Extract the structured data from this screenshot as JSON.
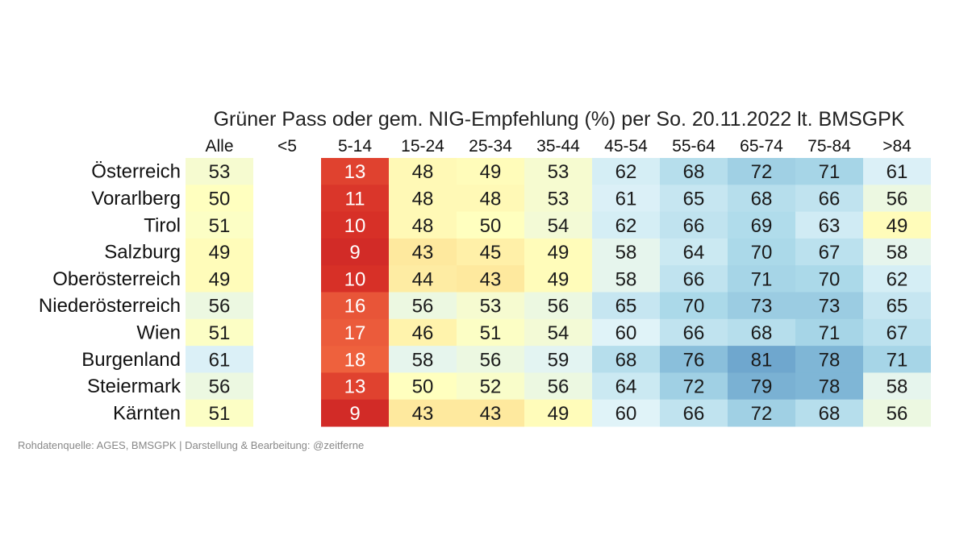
{
  "chart_data": {
    "type": "heatmap",
    "title": "Grüner Pass oder gem. NIG-Empfehlung (%) per So. 20.11.2022 lt. BMSGPK",
    "columns": [
      "Alle",
      "<5",
      "5-14",
      "15-24",
      "25-34",
      "35-44",
      "45-54",
      "55-64",
      "65-74",
      "75-84",
      ">84"
    ],
    "rows": [
      "Österreich",
      "Vorarlberg",
      "Tirol",
      "Salzburg",
      "Oberösterreich",
      "Niederösterreich",
      "Wien",
      "Burgenland",
      "Steiermark",
      "Kärnten"
    ],
    "values": [
      [
        53,
        null,
        13,
        48,
        49,
        53,
        62,
        68,
        72,
        71,
        61
      ],
      [
        50,
        null,
        11,
        48,
        48,
        53,
        61,
        65,
        68,
        66,
        56
      ],
      [
        51,
        null,
        10,
        48,
        50,
        54,
        62,
        66,
        69,
        63,
        49
      ],
      [
        49,
        null,
        9,
        43,
        45,
        49,
        58,
        64,
        70,
        67,
        58
      ],
      [
        49,
        null,
        10,
        44,
        43,
        49,
        58,
        66,
        71,
        70,
        62
      ],
      [
        56,
        null,
        16,
        56,
        53,
        56,
        65,
        70,
        73,
        73,
        65
      ],
      [
        51,
        null,
        17,
        46,
        51,
        54,
        60,
        66,
        68,
        71,
        67
      ],
      [
        61,
        null,
        18,
        58,
        56,
        59,
        68,
        76,
        81,
        78,
        71
      ],
      [
        56,
        null,
        13,
        50,
        52,
        56,
        64,
        72,
        79,
        78,
        58
      ],
      [
        51,
        null,
        9,
        43,
        43,
        49,
        60,
        66,
        72,
        68,
        56
      ]
    ],
    "colorscale": "RdYlBu",
    "value_range": [
      0,
      100
    ],
    "source": "Rohdatenquelle: AGES, BMSGPK | Darstellung & Bearbeitung: @zeitferne"
  }
}
